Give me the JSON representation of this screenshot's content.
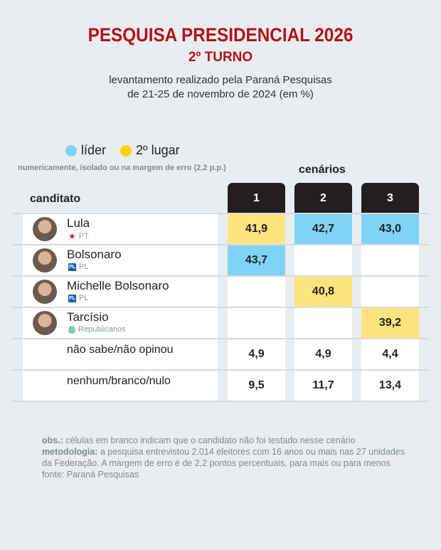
{
  "title": "PESQUISA PRESIDENCIAL 2026",
  "subtitle": "2º TURNO",
  "desc1": "levantamento realizado pela Paraná Pesquisas",
  "desc2": "de 21-25 de novembro de 2024 (em %)",
  "legend": {
    "leader": "líder",
    "second": "2º lugar",
    "note": "numericamente, isolado ou na margem de erro (2,2 p.p.)"
  },
  "colors": {
    "leader": "#7fd3f7",
    "second": "#fde47f"
  },
  "chart_data": {
    "type": "table",
    "title": "PESQUISA PRESIDENCIAL 2026",
    "group_label": "cenários",
    "row_header": "canditato",
    "columns": [
      "1",
      "2",
      "3"
    ],
    "rows": [
      {
        "name": "Lula",
        "party": "PT",
        "values": [
          "41,9",
          "42,7",
          "43,0"
        ],
        "status": [
          "second",
          "leader",
          "leader"
        ]
      },
      {
        "name": "Bolsonaro",
        "party": "PL",
        "values": [
          "43,7",
          "",
          ""
        ],
        "status": [
          "leader",
          "",
          ""
        ]
      },
      {
        "name": "Michelle Bolsonaro",
        "party": "PL",
        "values": [
          "",
          "40,8",
          ""
        ],
        "status": [
          "",
          "second",
          ""
        ]
      },
      {
        "name": "Tarcísio",
        "party": "Republicanos",
        "values": [
          "",
          "",
          "39,2"
        ],
        "status": [
          "",
          "",
          "second"
        ]
      },
      {
        "name": "não sabe/não opinou",
        "party": "",
        "values": [
          "4,9",
          "4,9",
          "4,4"
        ],
        "status": [
          "",
          "",
          ""
        ]
      },
      {
        "name": "nenhum/branco/nulo",
        "party": "",
        "values": [
          "9,5",
          "11,7",
          "13,4"
        ],
        "status": [
          "",
          "",
          ""
        ]
      }
    ]
  },
  "footer": {
    "obs_label": "obs.:",
    "obs": " células em branco indicam que o candidato não foi testado nesse cenário",
    "met_label": "metodologia:",
    "met": " a pesquisa entrevistou 2.014 eleitores com 16 anos ou mais nas 27 unidades da Federação. A margem de erro é de 2,2 pontos percentuais, para mais ou para menos",
    "source": "fonte: Paraná Pesquisas"
  }
}
